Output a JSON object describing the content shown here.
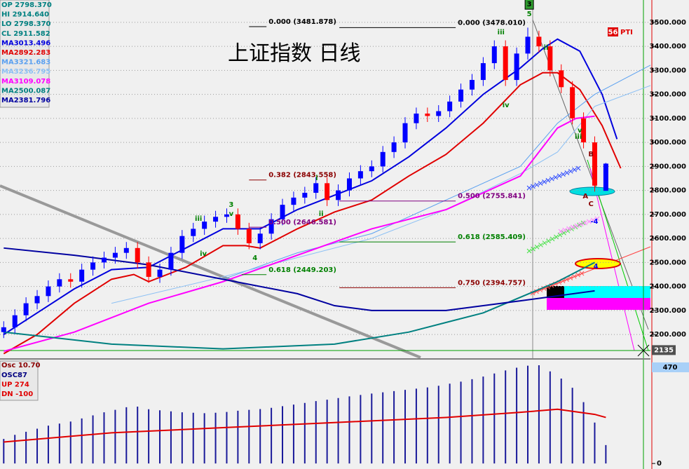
{
  "chart_data": [
    {
      "type": "candlestick",
      "title": "上证指数  日线",
      "readouts": [
        "OP  2798.370",
        "HI   2914.640",
        "LO  2798.370",
        "CL  2911.582"
      ],
      "readout_color": "#008080",
      "x": [
        1,
        4,
        7,
        10,
        13,
        16,
        19,
        22,
        25,
        28,
        31,
        34,
        37,
        40,
        43,
        46,
        49,
        52,
        55,
        58,
        61,
        64,
        67,
        70,
        73,
        76,
        79,
        82,
        85,
        88,
        91,
        94,
        97,
        100,
        103,
        106,
        109,
        112,
        115,
        118,
        121,
        124,
        127,
        130,
        133,
        136,
        139,
        142,
        145,
        148,
        151,
        154,
        157,
        160,
        163
      ],
      "open": [
        2210,
        2230,
        2280,
        2330,
        2360,
        2400,
        2430,
        2420,
        2470,
        2500,
        2520,
        2540,
        2560,
        2500,
        2440,
        2470,
        2540,
        2610,
        2640,
        2670,
        2690,
        2700,
        2640,
        2580,
        2620,
        2680,
        2740,
        2770,
        2790,
        2830,
        2760,
        2800,
        2850,
        2880,
        2900,
        2960,
        3000,
        3080,
        3120,
        3110,
        3130,
        3170,
        3220,
        3260,
        3330,
        3400,
        3260,
        3370,
        3440,
        3400,
        3300,
        3230,
        3100,
        3000,
        2798.37
      ],
      "high": [
        2255,
        2305,
        2355,
        2385,
        2425,
        2455,
        2455,
        2495,
        2525,
        2545,
        2565,
        2585,
        2585,
        2525,
        2495,
        2565,
        2635,
        2665,
        2695,
        2715,
        2725,
        2725,
        2665,
        2645,
        2705,
        2765,
        2795,
        2815,
        2855,
        2855,
        2825,
        2875,
        2905,
        2925,
        2985,
        3025,
        3105,
        3145,
        3145,
        3155,
        3195,
        3245,
        3285,
        3355,
        3425,
        3425,
        3395,
        3478.01,
        3465,
        3425,
        3325,
        3255,
        3125,
        3025,
        2914.64
      ],
      "low": [
        2185,
        2205,
        2255,
        2305,
        2335,
        2375,
        2395,
        2395,
        2445,
        2475,
        2495,
        2515,
        2475,
        2415,
        2415,
        2445,
        2515,
        2585,
        2615,
        2645,
        2665,
        2615,
        2555,
        2555,
        2595,
        2655,
        2715,
        2745,
        2765,
        2735,
        2735,
        2775,
        2825,
        2855,
        2875,
        2935,
        2975,
        3055,
        3085,
        3085,
        3105,
        3145,
        3195,
        3235,
        3305,
        3235,
        3235,
        3345,
        3375,
        3275,
        3205,
        3075,
        2975,
        2795,
        2798.37
      ],
      "close": [
        2230,
        2280,
        2330,
        2360,
        2400,
        2430,
        2420,
        2470,
        2500,
        2520,
        2540,
        2560,
        2500,
        2440,
        2470,
        2540,
        2610,
        2640,
        2670,
        2690,
        2700,
        2640,
        2580,
        2620,
        2680,
        2740,
        2770,
        2790,
        2830,
        2760,
        2800,
        2850,
        2880,
        2900,
        2960,
        3000,
        3080,
        3120,
        3110,
        3130,
        3170,
        3220,
        3260,
        3330,
        3400,
        3260,
        3370,
        3440,
        3400,
        3300,
        3230,
        3100,
        3000,
        2820,
        2911.582
      ],
      "up_color": "#0000ff",
      "down_color": "#ff0000",
      "series": [
        {
          "name": "MA3013.496",
          "color": "#0000dd",
          "x": [
            1,
            10,
            20,
            30,
            40,
            50,
            60,
            70,
            80,
            90,
            100,
            110,
            120,
            130,
            140,
            146,
            150,
            156,
            162,
            166
          ],
          "values": [
            2200,
            2290,
            2390,
            2470,
            2480,
            2560,
            2640,
            2640,
            2720,
            2780,
            2840,
            2940,
            3060,
            3200,
            3310,
            3390,
            3430,
            3380,
            3200,
            3013.496
          ]
        },
        {
          "name": "MA2892.283",
          "color": "#e00000",
          "x": [
            1,
            10,
            20,
            30,
            36,
            40,
            50,
            60,
            66,
            70,
            80,
            90,
            100,
            110,
            120,
            130,
            140,
            146,
            150,
            156,
            162,
            167
          ],
          "values": [
            2120,
            2200,
            2330,
            2430,
            2450,
            2420,
            2480,
            2570,
            2570,
            2560,
            2640,
            2710,
            2760,
            2860,
            2950,
            3080,
            3240,
            3290,
            3290,
            3220,
            3070,
            2892.283
          ]
        },
        {
          "name": "MA3321.683",
          "color": "#5aa0f0",
          "x": [
            60,
            80,
            100,
            120,
            140,
            150,
            160,
            175
          ],
          "values": [
            2430,
            2540,
            2620,
            2760,
            2900,
            3080,
            3200,
            3321.683
          ]
        },
        {
          "name": "MA3236.795",
          "color": "#8cc0f4",
          "x": [
            30,
            60,
            80,
            100,
            120,
            140,
            150,
            160,
            175
          ],
          "values": [
            2330,
            2440,
            2520,
            2600,
            2720,
            2870,
            2960,
            3150,
            3236.795
          ]
        },
        {
          "name": "MA3109.078",
          "color": "#ff00ff",
          "x": [
            1,
            20,
            40,
            60,
            80,
            100,
            120,
            140,
            150,
            155,
            160
          ],
          "values": [
            2130,
            2210,
            2330,
            2420,
            2530,
            2640,
            2720,
            2860,
            3060,
            3100,
            3109.078
          ]
        },
        {
          "name": "MA2500.087",
          "color": "#008080",
          "x": [
            1,
            30,
            60,
            90,
            110,
            130,
            150,
            160
          ],
          "values": [
            2210,
            2160,
            2140,
            2160,
            2210,
            2290,
            2420,
            2500.087
          ]
        },
        {
          "name": "MA2381.796",
          "color": "#0000a0",
          "x": [
            1,
            20,
            40,
            60,
            80,
            90,
            100,
            120,
            140,
            160
          ],
          "values": [
            2560,
            2530,
            2490,
            2430,
            2370,
            2320,
            2300,
            2300,
            2340,
            2381.796
          ]
        }
      ],
      "xlim": [
        0,
        175
      ],
      "ylim": [
        2104,
        3593
      ],
      "yticks": [
        {
          "value": 3500,
          "label": "3500.000"
        },
        {
          "value": 3400,
          "label": "3400.000"
        },
        {
          "value": 3300,
          "label": "3300.000"
        },
        {
          "value": 3200,
          "label": "3200.000"
        },
        {
          "value": 3100,
          "label": "3100.000"
        },
        {
          "value": 3000,
          "label": "3000.000"
        },
        {
          "value": 2900,
          "label": "2900.000"
        },
        {
          "value": 2800,
          "label": "2800.000"
        },
        {
          "value": 2700,
          "label": "2700.000"
        },
        {
          "value": 2600,
          "label": "2600.000"
        },
        {
          "value": 2500,
          "label": "2500.000"
        },
        {
          "value": 2400,
          "label": "2400.000"
        },
        {
          "value": 2300,
          "label": "2300.000"
        },
        {
          "value": 2200,
          "label": "2200.000"
        }
      ],
      "grid": true,
      "fib_levels": [
        {
          "label": "0.000 (3481.878)",
          "value": 3481.878,
          "color": "#000000",
          "x": [
            67,
            71.7
          ]
        },
        {
          "label": "0.000 (3478.010)",
          "value": 3478.01,
          "color": "#000000",
          "x": [
            91.3,
            122.6
          ]
        },
        {
          "label": "0.382 (2843.558)",
          "value": 2843.558,
          "color": "#8b0000",
          "x": [
            67,
            71.7
          ]
        },
        {
          "label": "0.500 (2755.841)",
          "value": 2755.841,
          "color": "#800080",
          "x": [
            91.3,
            122.6
          ]
        },
        {
          "label": "0.500 (2646.581)",
          "value": 2646.581,
          "color": "#800080",
          "x": [
            67,
            71.7
          ]
        },
        {
          "label": "0.618 (2585.409)",
          "value": 2585.409,
          "color": "#008000",
          "x": [
            91.3,
            122.6
          ]
        },
        {
          "label": "0.618 (2449.203)",
          "value": 2449.203,
          "color": "#008000",
          "x": [
            65,
            71.7
          ]
        },
        {
          "label": "0.750 (2394.757)",
          "value": 2394.757,
          "color": "#8b0000",
          "x": [
            91.3,
            122.6
          ]
        }
      ],
      "wave_labels": [
        {
          "text": "3",
          "x": 142.4,
          "y": 3575,
          "color": "#2e9b2e",
          "boxed": true
        },
        {
          "text": "5",
          "x": 142.4,
          "y": 3535,
          "color": "#008000"
        },
        {
          "text": "iii",
          "x": 134.8,
          "y": 3459,
          "color": "#008000"
        },
        {
          "text": "iv",
          "x": 136.1,
          "y": 3155,
          "color": "#008000"
        },
        {
          "text": "ii",
          "x": 146.9,
          "y": 3394,
          "color": "#008000"
        },
        {
          "text": "iii",
          "x": 53.4,
          "y": 2682,
          "color": "#008000"
        },
        {
          "text": "iv",
          "x": 54.7,
          "y": 2536,
          "color": "#008000"
        },
        {
          "text": "3",
          "x": 62.2,
          "y": 2740,
          "color": "#008000"
        },
        {
          "text": "v",
          "x": 62.2,
          "y": 2702,
          "color": "#008000"
        },
        {
          "text": "4",
          "x": 68.6,
          "y": 2519,
          "color": "#008000"
        },
        {
          "text": "i",
          "x": 85.2,
          "y": 2851,
          "color": "#008000"
        },
        {
          "text": "ii",
          "x": 86.4,
          "y": 2702,
          "color": "#008000"
        },
        {
          "text": "v",
          "x": 156,
          "y": 3050,
          "color": "#008000"
        },
        {
          "text": "iii",
          "x": 155.6,
          "y": 3024,
          "color": "#008000"
        },
        {
          "text": "A",
          "x": 157.5,
          "y": 2776,
          "color": "#8b0000"
        },
        {
          "text": "B",
          "x": 159,
          "y": 2951,
          "color": "#8b0000"
        },
        {
          "text": "C",
          "x": 159,
          "y": 2743,
          "color": "#8b0000"
        },
        {
          "text": "-4",
          "x": 159.9,
          "y": 2670,
          "color": "#0000ff"
        },
        {
          "text": "4",
          "x": 160.3,
          "y": 2484,
          "color": "#0000ff"
        }
      ],
      "indicator": {
        "badge": "56",
        "text": "PTI"
      },
      "price_marker": 2135
    },
    {
      "type": "bar",
      "title": "Osc 10.70",
      "readouts": [
        {
          "text": "OSC87",
          "color": "#000080"
        },
        {
          "text": "UP   274",
          "color": "#e00000"
        },
        {
          "text": "DN   -100",
          "color": "#e00000"
        }
      ],
      "x": [
        1,
        4,
        7,
        10,
        13,
        16,
        19,
        22,
        25,
        28,
        31,
        34,
        37,
        40,
        43,
        46,
        49,
        52,
        55,
        58,
        61,
        64,
        67,
        70,
        73,
        76,
        79,
        82,
        85,
        88,
        91,
        94,
        97,
        100,
        103,
        106,
        109,
        112,
        115,
        118,
        121,
        124,
        127,
        130,
        133,
        136,
        139,
        142,
        145,
        148,
        151,
        154,
        157,
        160,
        163
      ],
      "values": [
        120,
        140,
        155,
        170,
        185,
        195,
        205,
        220,
        235,
        250,
        262,
        275,
        278,
        265,
        260,
        255,
        250,
        248,
        246,
        248,
        252,
        258,
        262,
        266,
        272,
        280,
        288,
        296,
        305,
        312,
        320,
        328,
        335,
        342,
        348,
        354,
        360,
        366,
        372,
        380,
        390,
        400,
        412,
        425,
        440,
        455,
        468,
        478,
        480,
        450,
        415,
        370,
        300,
        200,
        90
      ],
      "color": "#1a1a9a",
      "series": [
        {
          "color": "#e00000",
          "x": [
            1,
            30,
            60,
            90,
            120,
            140,
            150,
            160,
            163
          ],
          "values": [
            105,
            150,
            175,
            200,
            225,
            250,
            265,
            240,
            225
          ]
        }
      ],
      "xlim": [
        0,
        175
      ],
      "ylim": [
        -27,
        511
      ],
      "yticks": [
        0,
        470
      ]
    }
  ]
}
